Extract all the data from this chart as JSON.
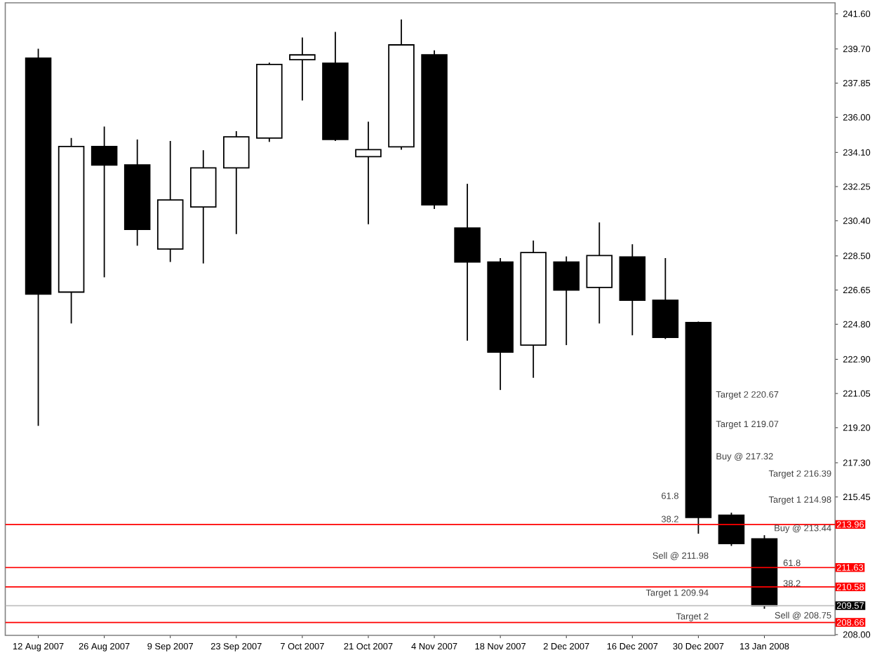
{
  "chart_data": {
    "type": "candlestick",
    "color": "#000000",
    "x": [
      "2007-08-12",
      "2007-08-19",
      "2007-08-26",
      "2007-09-02",
      "2007-09-09",
      "2007-09-16",
      "2007-09-23",
      "2007-09-30",
      "2007-10-07",
      "2007-10-14",
      "2007-10-21",
      "2007-10-28",
      "2007-11-04",
      "2007-11-11",
      "2007-11-18",
      "2007-11-25",
      "2007-12-02",
      "2007-12-09",
      "2007-12-16",
      "2007-12-23",
      "2007-12-30",
      "2008-01-06",
      "2008-01-13"
    ],
    "xlim": [
      "2007-08-05",
      "2008-01-28"
    ],
    "xticks": [
      {
        "value": "2007-08-12",
        "label": "12 Aug 2007"
      },
      {
        "value": "2007-08-26",
        "label": "26 Aug 2007"
      },
      {
        "value": "2007-09-09",
        "label": "9 Sep 2007"
      },
      {
        "value": "2007-09-23",
        "label": "23 Sep 2007"
      },
      {
        "value": "2007-10-07",
        "label": "7 Oct 2007"
      },
      {
        "value": "2007-10-21",
        "label": "21 Oct 2007"
      },
      {
        "value": "2007-11-04",
        "label": "4 Nov 2007"
      },
      {
        "value": "2007-11-18",
        "label": "18 Nov 2007"
      },
      {
        "value": "2007-12-02",
        "label": "2 Dec 2007"
      },
      {
        "value": "2007-12-16",
        "label": "16 Dec 2007"
      },
      {
        "value": "2007-12-30",
        "label": "30 Dec 2007"
      },
      {
        "value": "2008-01-13",
        "label": "13 Jan 2008"
      }
    ],
    "ohlc": [
      [
        239.2,
        239.71,
        219.3,
        226.43
      ],
      [
        226.54,
        234.88,
        224.84,
        234.42
      ],
      [
        234.42,
        235.5,
        227.34,
        233.42
      ],
      [
        233.42,
        234.8,
        229.05,
        229.93
      ],
      [
        228.87,
        234.72,
        228.17,
        231.53
      ],
      [
        231.15,
        234.22,
        228.09,
        233.26
      ],
      [
        233.26,
        235.25,
        229.68,
        234.94
      ],
      [
        234.88,
        238.96,
        234.67,
        238.86
      ],
      [
        239.12,
        240.32,
        236.91,
        239.38
      ],
      [
        238.93,
        240.62,
        234.72,
        234.8
      ],
      [
        233.87,
        235.76,
        230.21,
        234.25
      ],
      [
        234.4,
        241.3,
        234.25,
        239.92
      ],
      [
        239.38,
        239.63,
        231.04,
        231.26
      ],
      [
        230.01,
        232.4,
        223.91,
        228.17
      ],
      [
        228.17,
        228.38,
        221.24,
        223.29
      ],
      [
        223.67,
        229.33,
        221.9,
        228.68
      ],
      [
        228.17,
        228.47,
        223.67,
        226.65
      ],
      [
        226.79,
        230.31,
        224.84,
        228.52
      ],
      [
        228.44,
        229.13,
        224.2,
        226.1
      ],
      [
        226.1,
        228.38,
        224.0,
        224.09
      ],
      [
        224.89,
        224.95,
        213.46,
        214.34
      ],
      [
        214.46,
        214.6,
        212.8,
        212.93
      ],
      [
        213.18,
        213.38,
        209.4,
        209.57
      ]
    ],
    "ylim": [
      207.96,
      242.2
    ],
    "yticks": [
      {
        "value": 241.6,
        "label": "241.60"
      },
      {
        "value": 239.7,
        "label": "239.70"
      },
      {
        "value": 237.85,
        "label": "237.85"
      },
      {
        "value": 236.0,
        "label": "236.00"
      },
      {
        "value": 234.1,
        "label": "234.10"
      },
      {
        "value": 232.25,
        "label": "232.25"
      },
      {
        "value": 230.4,
        "label": "230.40"
      },
      {
        "value": 228.5,
        "label": "228.50"
      },
      {
        "value": 226.65,
        "label": "226.65"
      },
      {
        "value": 224.8,
        "label": "224.80"
      },
      {
        "value": 222.9,
        "label": "222.90"
      },
      {
        "value": 221.05,
        "label": "221.05"
      },
      {
        "value": 219.2,
        "label": "219.20"
      },
      {
        "value": 217.3,
        "label": "217.30"
      },
      {
        "value": 215.45,
        "label": "215.45"
      },
      {
        "value": 208.0,
        "label": "208.00"
      }
    ],
    "ref_lines": [
      {
        "axis": "y",
        "value": 213.96,
        "label": "213.96",
        "color": "#ff0000"
      },
      {
        "axis": "y",
        "value": 211.63,
        "label": "211.63",
        "color": "#ff0000"
      },
      {
        "axis": "y",
        "value": 210.58,
        "label": "210.58",
        "color": "#ff0000"
      },
      {
        "axis": "y",
        "value": 209.57,
        "label": "209.57",
        "color": "#c0c0c0"
      },
      {
        "axis": "y",
        "value": 208.66,
        "label": "208.66",
        "color": "#ff0000"
      }
    ],
    "annotations": [
      "Target 2  220.67",
      "Target 1  219.07",
      "Buy @  217.32",
      "Sell @  211.98",
      "Target 1  209.94",
      "Target 2",
      "61.8",
      "38.2",
      "Target 2  216.39",
      "Target 1  214.98",
      "Buy @  213.44",
      "Sell @  208.75",
      "61.8",
      "38.2"
    ]
  }
}
